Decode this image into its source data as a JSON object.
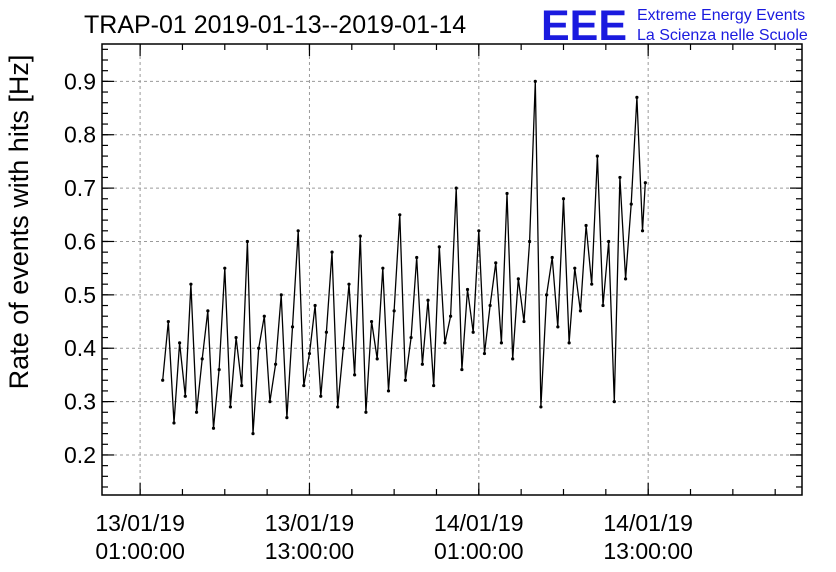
{
  "chart_data": {
    "type": "line",
    "title": "TRAP-01 2019-01-13--2019-01-14",
    "ylabel": "Rate of events with hits [Hz]",
    "xlabel": "",
    "x_unit": "hours since 13/01/19 00:00:00",
    "xlim": [
      -1.7,
      47.9
    ],
    "ylim": [
      0.125,
      0.97
    ],
    "yticks": [
      {
        "value": 0.2,
        "label": "0.2"
      },
      {
        "value": 0.3,
        "label": "0.3"
      },
      {
        "value": 0.4,
        "label": "0.4"
      },
      {
        "value": 0.5,
        "label": "0.5"
      },
      {
        "value": 0.6,
        "label": "0.6"
      },
      {
        "value": 0.7,
        "label": "0.7"
      },
      {
        "value": 0.8,
        "label": "0.8"
      },
      {
        "value": 0.9,
        "label": "0.9"
      }
    ],
    "xticks": [
      {
        "value": 1,
        "date": "13/01/19",
        "time": "01:00:00"
      },
      {
        "value": 13,
        "date": "13/01/19",
        "time": "13:00:00"
      },
      {
        "value": 25,
        "date": "14/01/19",
        "time": "01:00:00"
      },
      {
        "value": 37,
        "date": "14/01/19",
        "time": "13:00:00"
      }
    ],
    "x_minor_step": 3,
    "y_minor_step": 0.02,
    "grid": true,
    "series": [
      {
        "name": "rate",
        "color": "#000000",
        "x": [
          2.6,
          3,
          3.4,
          3.8,
          4.2,
          4.6,
          5,
          5.4,
          5.8,
          6.2,
          6.6,
          7,
          7.4,
          7.8,
          8.2,
          8.6,
          9,
          9.4,
          9.8,
          10.2,
          10.6,
          11,
          11.4,
          11.8,
          12.2,
          12.6,
          13,
          13.4,
          13.8,
          14.2,
          14.6,
          15,
          15.4,
          15.8,
          16.2,
          16.6,
          17,
          17.4,
          17.8,
          18.2,
          18.6,
          19,
          19.4,
          19.8,
          20.2,
          20.6,
          21,
          21.4,
          21.8,
          22.2,
          22.6,
          23,
          23.4,
          23.8,
          24.2,
          24.6,
          25,
          25.4,
          25.8,
          26.2,
          26.6,
          27,
          27.4,
          27.8,
          28.2,
          28.6,
          29,
          29.4,
          29.8,
          30.2,
          30.6,
          31,
          31.4,
          31.8,
          32.2,
          32.6,
          33,
          33.4,
          33.8,
          34.2,
          34.6,
          35,
          35.4,
          35.8,
          36.2,
          36.6,
          36.8
        ],
        "y": [
          0.34,
          0.45,
          0.26,
          0.41,
          0.31,
          0.52,
          0.28,
          0.38,
          0.47,
          0.25,
          0.36,
          0.55,
          0.29,
          0.42,
          0.33,
          0.6,
          0.24,
          0.4,
          0.46,
          0.3,
          0.37,
          0.5,
          0.27,
          0.44,
          0.62,
          0.33,
          0.39,
          0.48,
          0.31,
          0.43,
          0.58,
          0.29,
          0.4,
          0.52,
          0.35,
          0.61,
          0.28,
          0.45,
          0.38,
          0.55,
          0.32,
          0.47,
          0.65,
          0.34,
          0.42,
          0.57,
          0.37,
          0.49,
          0.33,
          0.59,
          0.41,
          0.46,
          0.7,
          0.36,
          0.51,
          0.43,
          0.62,
          0.39,
          0.48,
          0.56,
          0.41,
          0.69,
          0.38,
          0.53,
          0.45,
          0.6,
          0.9,
          0.29,
          0.5,
          0.57,
          0.44,
          0.68,
          0.41,
          0.55,
          0.47,
          0.63,
          0.52,
          0.76,
          0.48,
          0.6,
          0.3,
          0.72,
          0.53,
          0.67,
          0.87,
          0.62,
          0.71
        ]
      }
    ]
  },
  "logo": {
    "letters": "EEE",
    "line1": "Extreme Energy Events",
    "line2": "La Scienza nelle Scuole",
    "color": "#1a1adf"
  }
}
